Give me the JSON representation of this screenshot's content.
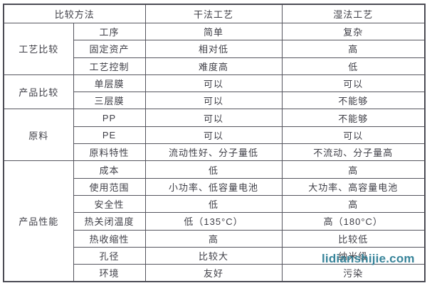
{
  "chart_data": {
    "type": "table",
    "columns": [
      "比较方法",
      "干法工艺",
      "湿法工艺"
    ],
    "groups": [
      {
        "category": "工艺比较",
        "rows": [
          {
            "item": "工序",
            "dry": "简单",
            "wet": "复杂"
          },
          {
            "item": "固定资产",
            "dry": "相对低",
            "wet": "高"
          },
          {
            "item": "工艺控制",
            "dry": "难度高",
            "wet": "低"
          }
        ]
      },
      {
        "category": "产品比较",
        "rows": [
          {
            "item": "单层膜",
            "dry": "可以",
            "wet": "可以"
          },
          {
            "item": "三层膜",
            "dry": "可以",
            "wet": "不能够"
          }
        ]
      },
      {
        "category": "原料",
        "rows": [
          {
            "item": "PP",
            "dry": "可以",
            "wet": "不能够"
          },
          {
            "item": "PE",
            "dry": "可以",
            "wet": "可以"
          },
          {
            "item": "原料特性",
            "dry": "流动性好、分子量低",
            "wet": "不流动、分子量高"
          }
        ]
      },
      {
        "category": "产品性能",
        "rows": [
          {
            "item": "成本",
            "dry": "低",
            "wet": "高"
          },
          {
            "item": "使用范围",
            "dry": "小功率、低容量电池",
            "wet": "大功率、高容量电池"
          },
          {
            "item": "安全性",
            "dry": "低",
            "wet": "高"
          },
          {
            "item": "热关闭温度",
            "dry": "低（135°C）",
            "wet": "高（180°C）"
          },
          {
            "item": "热收缩性",
            "dry": "高",
            "wet": "比较低"
          },
          {
            "item": "孔径",
            "dry": "比较大",
            "wet": "纳米级"
          },
          {
            "item": "环境",
            "dry": "友好",
            "wet": "污染"
          }
        ]
      }
    ]
  },
  "watermark": {
    "text": "lidianshijie.com",
    "color": "#2e7e95"
  },
  "colors": {
    "border": "#55555e",
    "outer_border": "#4b4b54",
    "text": "#3e3e46",
    "background": "#ffffff"
  }
}
